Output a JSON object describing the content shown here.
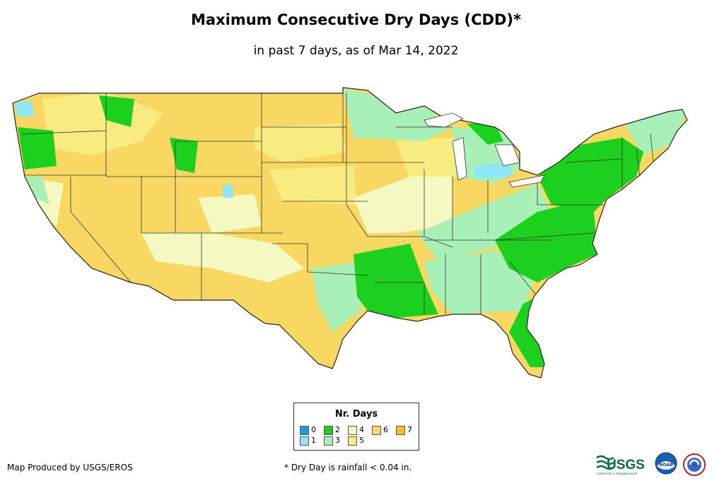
{
  "header": {
    "title": "Maximum Consecutive Dry Days (CDD)*",
    "subtitle": "in past 7 days, as of Mar 14, 2022"
  },
  "legend": {
    "title": "Nr. Days",
    "items": [
      {
        "label": "0",
        "color": "#1e9be8"
      },
      {
        "label": "1",
        "color": "#8ee6f7"
      },
      {
        "label": "2",
        "color": "#1ed01e"
      },
      {
        "label": "3",
        "color": "#a8f0b8"
      },
      {
        "label": "4",
        "color": "#f6f8c2"
      },
      {
        "label": "5",
        "color": "#f8ec80"
      },
      {
        "label": "6",
        "color": "#f8d862"
      },
      {
        "label": "7",
        "color": "#f4c21a"
      }
    ]
  },
  "footer": {
    "credit": "Map Produced by USGS/EROS",
    "note": "* Dry Day is rainfall < 0.04 in."
  },
  "logos": {
    "usgs": "USGS",
    "usgs_tagline": "science for a changing world",
    "noaa": "NOAA"
  }
}
